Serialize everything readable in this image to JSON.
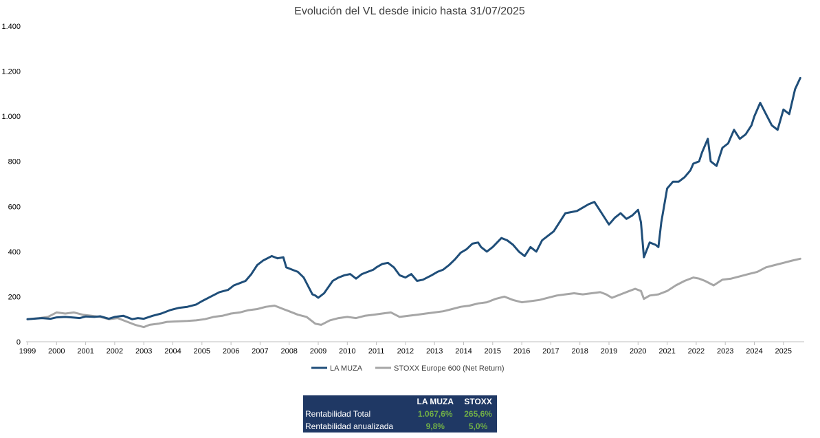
{
  "chart_data": {
    "type": "line",
    "title": "Evolución del VL desde inicio hasta 31/07/2025",
    "xlabel": "",
    "ylabel": "",
    "xlim": [
      1999,
      2025.7
    ],
    "ylim": [
      0,
      1400
    ],
    "y_ticks": [
      0,
      200,
      400,
      600,
      800,
      1000,
      1200,
      1400
    ],
    "y_tick_labels": [
      "0",
      "200",
      "400",
      "600",
      "800",
      "1.000",
      "1.200",
      "1.400"
    ],
    "x_ticks": [
      1999,
      2000,
      2001,
      2002,
      2003,
      2004,
      2005,
      2006,
      2007,
      2008,
      2009,
      2010,
      2011,
      2012,
      2013,
      2014,
      2015,
      2016,
      2017,
      2018,
      2019,
      2020,
      2021,
      2022,
      2023,
      2024,
      2025
    ],
    "x_tick_labels": [
      "1999",
      "2000",
      "2001",
      "2002",
      "2003",
      "2004",
      "2005",
      "2006",
      "2007",
      "2008",
      "2009",
      "2010",
      "2011",
      "2012",
      "2013",
      "2014",
      "2015",
      "2016",
      "2017",
      "2018",
      "2019",
      "2020",
      "2021",
      "2022",
      "2023",
      "2024",
      "2025"
    ],
    "grid": false,
    "legend_position": "bottom",
    "series": [
      {
        "name": "LA MUZA",
        "color": "#1f4e79",
        "x": [
          1999.0,
          1999.5,
          1999.8,
          2000.0,
          2000.3,
          2000.6,
          2000.8,
          2001.0,
          2001.3,
          2001.5,
          2001.8,
          2002.0,
          2002.3,
          2002.6,
          2002.8,
          2003.0,
          2003.3,
          2003.6,
          2003.9,
          2004.2,
          2004.5,
          2004.8,
          2005.0,
          2005.3,
          2005.6,
          2005.9,
          2006.1,
          2006.3,
          2006.5,
          2006.7,
          2006.9,
          2007.1,
          2007.4,
          2007.6,
          2007.8,
          2007.9,
          2008.1,
          2008.3,
          2008.5,
          2008.6,
          2008.8,
          2008.9,
          2009.0,
          2009.2,
          2009.5,
          2009.7,
          2009.9,
          2010.1,
          2010.3,
          2010.5,
          2010.7,
          2010.9,
          2011.0,
          2011.2,
          2011.4,
          2011.6,
          2011.8,
          2012.0,
          2012.2,
          2012.4,
          2012.6,
          2012.9,
          2013.1,
          2013.3,
          2013.5,
          2013.7,
          2013.9,
          2014.1,
          2014.3,
          2014.5,
          2014.6,
          2014.8,
          2015.0,
          2015.3,
          2015.5,
          2015.7,
          2015.9,
          2016.1,
          2016.3,
          2016.5,
          2016.7,
          2016.9,
          2017.1,
          2017.3,
          2017.5,
          2017.7,
          2017.9,
          2018.1,
          2018.3,
          2018.5,
          2018.7,
          2018.9,
          2019.0,
          2019.2,
          2019.4,
          2019.6,
          2019.8,
          2020.0,
          2020.1,
          2020.2,
          2020.4,
          2020.6,
          2020.7,
          2020.8,
          2021.0,
          2021.2,
          2021.4,
          2021.6,
          2021.8,
          2021.9,
          2022.1,
          2022.2,
          2022.4,
          2022.5,
          2022.7,
          2022.9,
          2023.1,
          2023.3,
          2023.5,
          2023.7,
          2023.9,
          2024.0,
          2024.2,
          2024.4,
          2024.6,
          2024.8,
          2025.0,
          2025.2,
          2025.4,
          2025.58
        ],
        "values": [
          100,
          105,
          102,
          108,
          110,
          107,
          105,
          112,
          110,
          113,
          102,
          110,
          115,
          100,
          105,
          102,
          115,
          125,
          140,
          150,
          155,
          165,
          180,
          200,
          220,
          230,
          250,
          260,
          270,
          300,
          340,
          360,
          380,
          370,
          375,
          330,
          320,
          310,
          285,
          260,
          210,
          205,
          195,
          215,
          270,
          285,
          295,
          300,
          280,
          300,
          310,
          320,
          330,
          345,
          350,
          330,
          295,
          285,
          300,
          270,
          275,
          295,
          310,
          320,
          340,
          365,
          395,
          410,
          435,
          440,
          420,
          400,
          420,
          460,
          450,
          430,
          400,
          380,
          420,
          400,
          450,
          470,
          490,
          530,
          570,
          575,
          580,
          595,
          610,
          620,
          580,
          540,
          520,
          550,
          570,
          545,
          560,
          585,
          530,
          375,
          440,
          430,
          420,
          530,
          680,
          710,
          710,
          730,
          760,
          790,
          800,
          840,
          900,
          800,
          780,
          860,
          880,
          940,
          900,
          920,
          960,
          1000,
          1060,
          1010,
          960,
          940,
          1030,
          1010,
          1120,
          1170
        ]
      },
      {
        "name": "STOXX Europe 600 (Net Return)",
        "color": "#a6a6a6",
        "x": [
          1999.0,
          1999.4,
          1999.7,
          2000.0,
          2000.3,
          2000.6,
          2000.9,
          2001.2,
          2001.5,
          2001.8,
          2002.1,
          2002.4,
          2002.7,
          2003.0,
          2003.2,
          2003.5,
          2003.8,
          2004.1,
          2004.5,
          2004.8,
          2005.1,
          2005.4,
          2005.7,
          2006.0,
          2006.3,
          2006.6,
          2006.9,
          2007.2,
          2007.5,
          2007.8,
          2008.0,
          2008.3,
          2008.6,
          2008.9,
          2009.1,
          2009.4,
          2009.7,
          2010.0,
          2010.3,
          2010.6,
          2010.9,
          2011.2,
          2011.5,
          2011.8,
          2012.1,
          2012.4,
          2012.7,
          2013.0,
          2013.3,
          2013.6,
          2013.9,
          2014.2,
          2014.5,
          2014.8,
          2015.1,
          2015.4,
          2015.7,
          2016.0,
          2016.3,
          2016.6,
          2016.9,
          2017.2,
          2017.5,
          2017.8,
          2018.1,
          2018.4,
          2018.7,
          2018.9,
          2019.1,
          2019.4,
          2019.7,
          2019.9,
          2020.1,
          2020.2,
          2020.4,
          2020.7,
          2021.0,
          2021.3,
          2021.6,
          2021.9,
          2022.1,
          2022.3,
          2022.6,
          2022.9,
          2023.2,
          2023.5,
          2023.8,
          2024.1,
          2024.4,
          2024.7,
          2025.0,
          2025.3,
          2025.58
        ],
        "values": [
          100,
          105,
          110,
          130,
          125,
          130,
          120,
          115,
          110,
          100,
          105,
          90,
          75,
          65,
          75,
          80,
          88,
          90,
          92,
          95,
          100,
          110,
          115,
          125,
          130,
          140,
          145,
          155,
          160,
          145,
          135,
          120,
          110,
          80,
          75,
          95,
          105,
          110,
          105,
          115,
          120,
          125,
          130,
          110,
          115,
          120,
          125,
          130,
          135,
          145,
          155,
          160,
          170,
          175,
          190,
          200,
          185,
          175,
          180,
          185,
          195,
          205,
          210,
          215,
          210,
          215,
          220,
          210,
          195,
          210,
          225,
          235,
          225,
          190,
          205,
          210,
          225,
          250,
          270,
          285,
          280,
          270,
          250,
          275,
          280,
          290,
          300,
          310,
          330,
          340,
          350,
          360,
          368
        ]
      }
    ]
  },
  "stats_table": {
    "headers": [
      "",
      "LA MUZA",
      "STOXX"
    ],
    "rows": [
      {
        "label": "Rentabilidad Total",
        "la_muza": "1.067,6%",
        "stoxx": "265,6%"
      },
      {
        "label": "Rentabilidad anualizada",
        "la_muza": "9,8%",
        "stoxx": "5,0%"
      }
    ]
  }
}
